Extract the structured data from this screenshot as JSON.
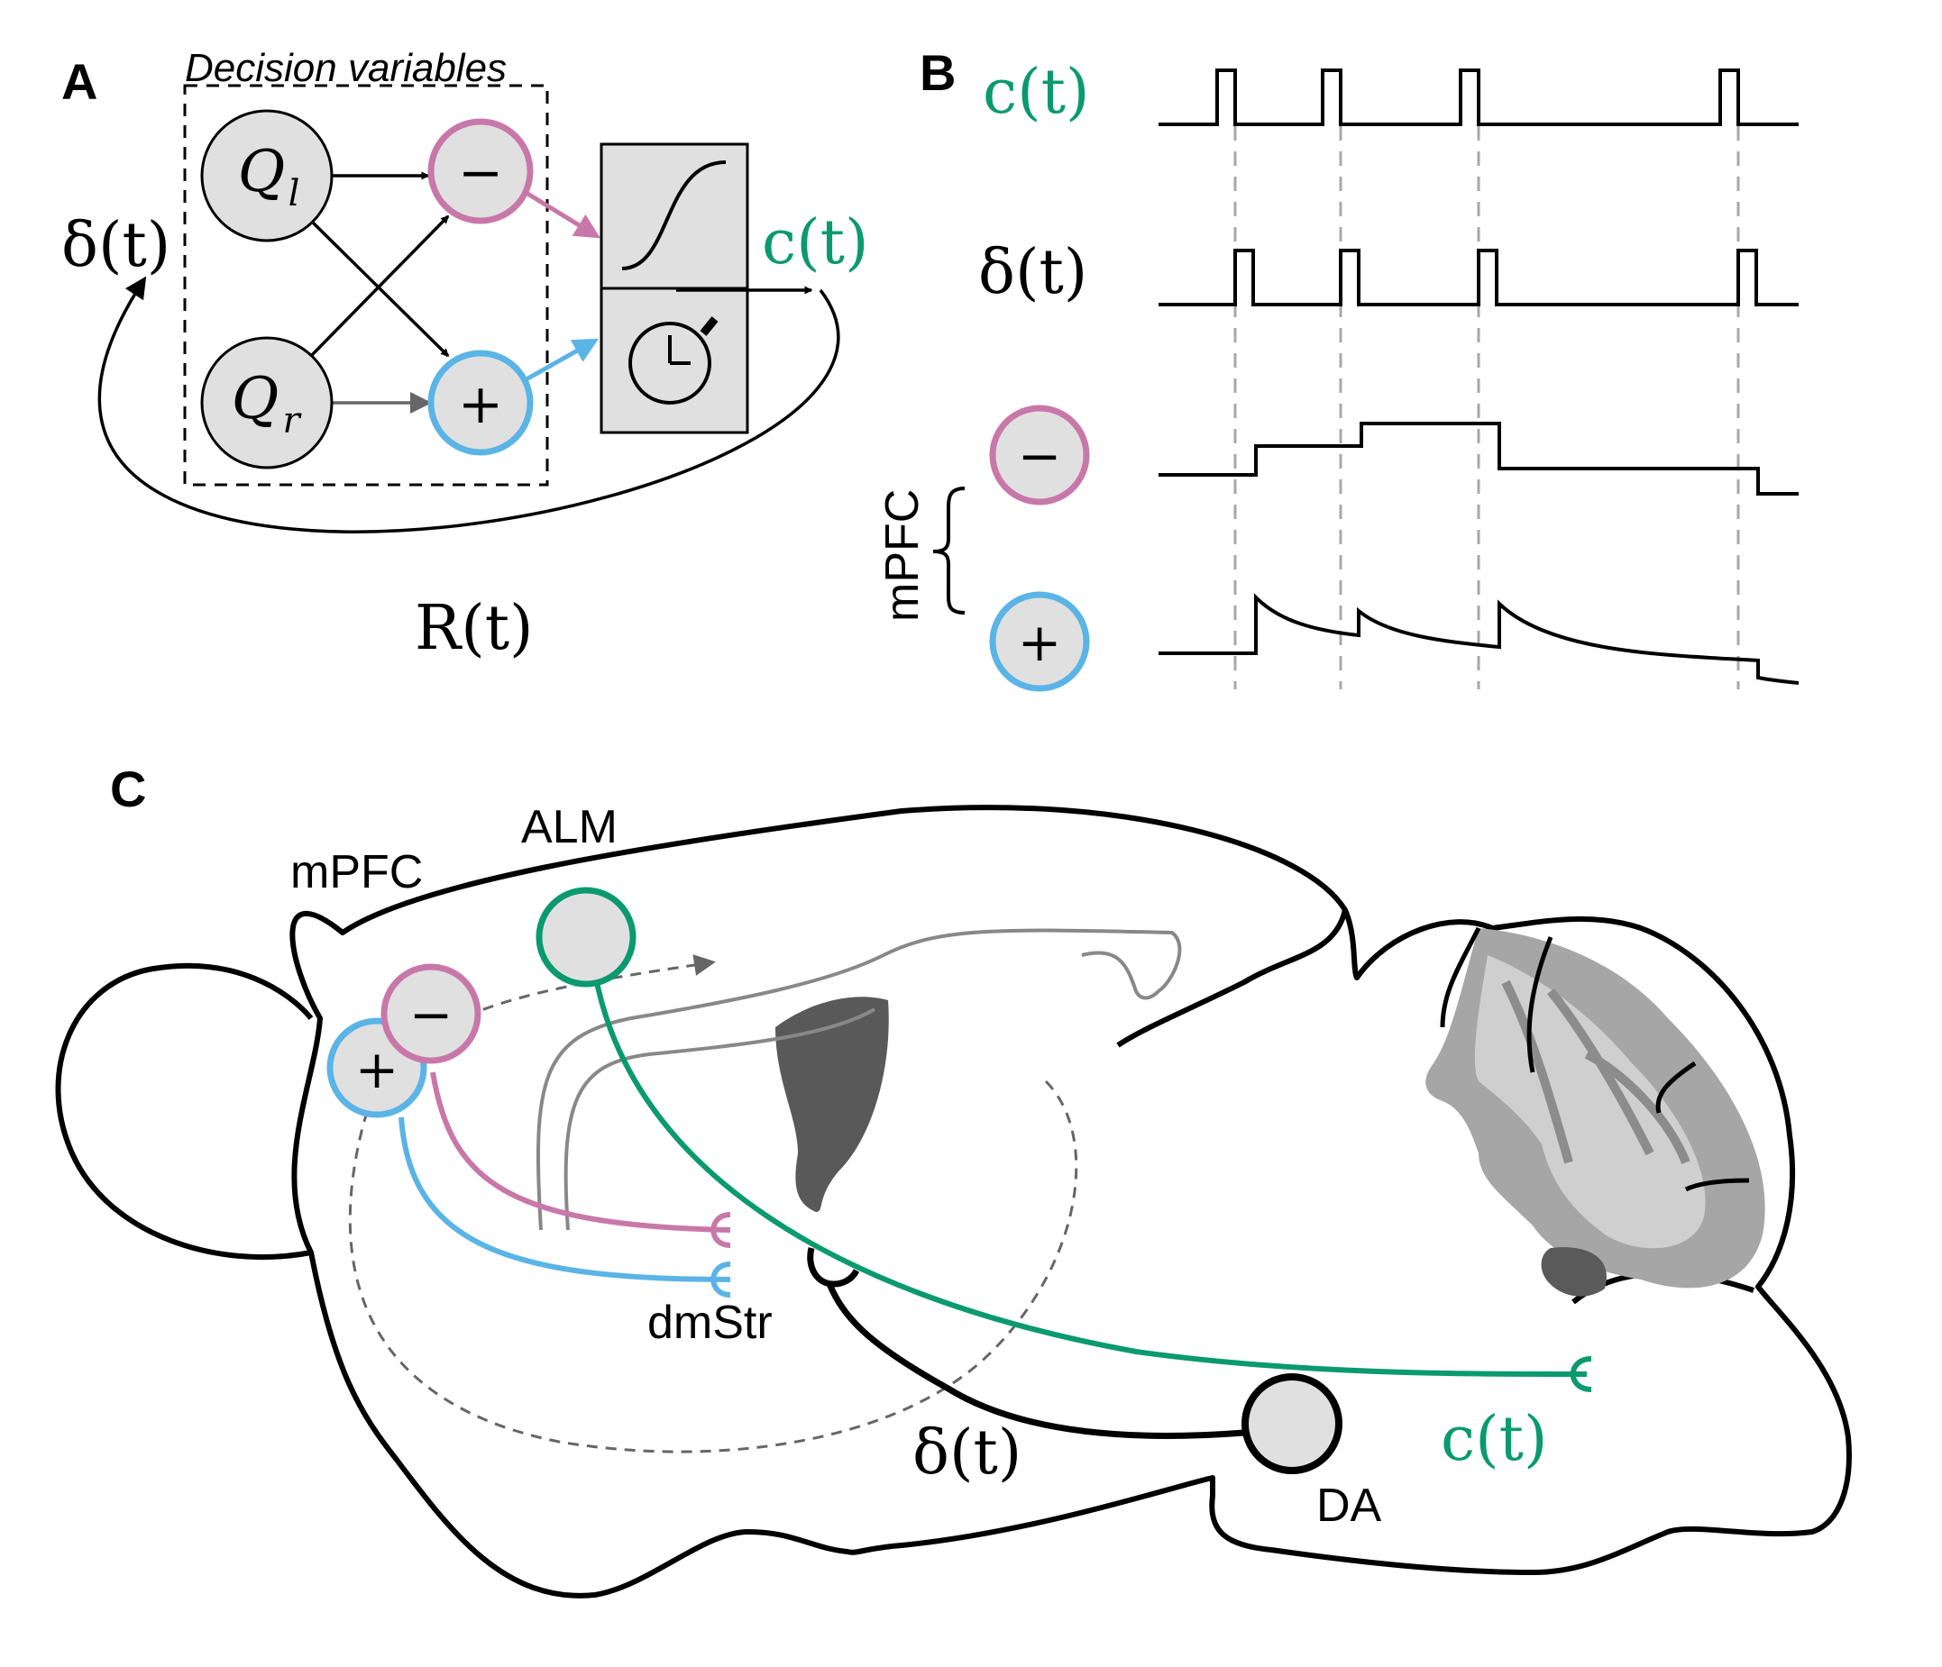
{
  "panels": {
    "a": "A",
    "b": "B",
    "c": "C"
  },
  "colors": {
    "black": "#000000",
    "pink": "#c878a8",
    "blue": "#5ab4e6",
    "green": "#0a9a6e",
    "node_fill": "#e0e0e0",
    "gray_line": "#888888",
    "dark_gray": "#595959",
    "light_gray": "#c8c8c8",
    "mid_gray": "#a0a0a0"
  },
  "panel_a": {
    "box_label": "Decision variables",
    "node_ql": {
      "base": "Q",
      "sub": "l"
    },
    "node_qr": {
      "base": "Q",
      "sub": "r"
    },
    "minus": "−",
    "plus": "+",
    "delta": "δ(t)",
    "c_out": "c(t)",
    "reward": "R(t)",
    "icons": [
      "sigmoid-icon",
      "stopwatch-icon"
    ]
  },
  "panel_b": {
    "c_label": "c(t)",
    "delta_label": "δ(t)",
    "minus": "−",
    "plus": "+",
    "brace_label": "mPFC"
  },
  "panel_c": {
    "mpfc": "mPFC",
    "alm": "ALM",
    "dmstr": "dmStr",
    "da": "DA",
    "delta": "δ(t)",
    "c_label": "c(t)",
    "minus": "−",
    "plus": "+"
  }
}
